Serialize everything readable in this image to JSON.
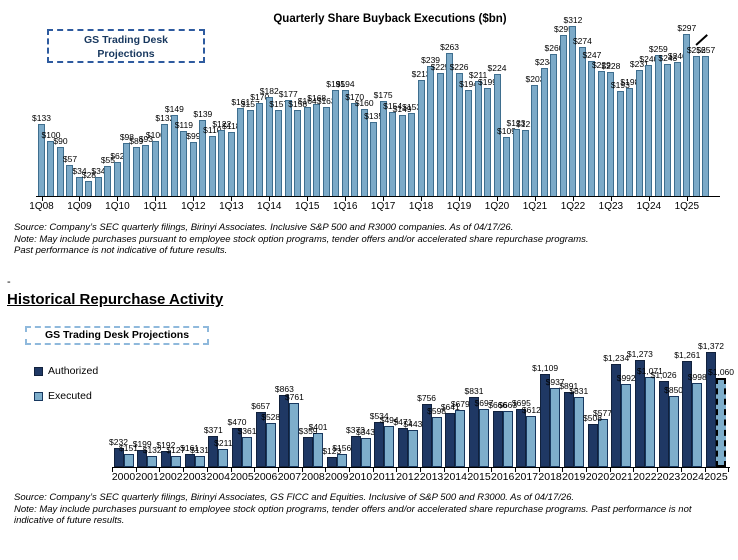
{
  "top_chart": {
    "projection_box_line1": "GS Trading Desk",
    "projection_box_line2": "Projections",
    "source_line1": "Source: Company’s SEC quarterly filings, Birinyi Associates. Inclusive S&P 500 and R3000 companies. As of 04/17/26.",
    "source_line2": "Note: May include purchases pursuant to employee stock option programs, tender offers and/or accelerated share repurchase programs.",
    "source_line3": "Past performance is not indicative of future results."
  },
  "spacer_dash": "-",
  "section_heading": "Historical Repurchase Activity",
  "bottom_chart": {
    "projection_box": "GS Trading Desk Projections",
    "source_line1": "Source: Company’s SEC quarterly filings, Birinyi Associates, GS FICC and Equities. Inclusive of S&P 500 and R3000. As of 04/17/26.",
    "source_line2": "Note: May include purchases pursuant to employee stock option programs, tender offers and/or accelerated share repurchase programs. Past performance is not indicative of future results."
  },
  "chart_data": [
    {
      "id": "quarterly_buyback_executions",
      "type": "bar",
      "title": "Quarterly Share Buyback Executions ($bn)",
      "unit": "$bn",
      "label_prefix": "$",
      "bar_color": "#7CAAC8",
      "bar_border": "#3E6E8E",
      "ylim": [
        0,
        330
      ],
      "ticks_every_n_bars": 4,
      "x_tick_labels": [
        "1Q08",
        "1Q09",
        "1Q10",
        "1Q11",
        "1Q12",
        "1Q13",
        "1Q14",
        "1Q15",
        "1Q16",
        "1Q17",
        "1Q18",
        "1Q19",
        "1Q20",
        "1Q21",
        "1Q22",
        "1Q23",
        "1Q24",
        "1Q25"
      ],
      "values": [
        133,
        100,
        90,
        57,
        34,
        28,
        34,
        55,
        62,
        98,
        89,
        93,
        100,
        132,
        149,
        119,
        99,
        139,
        110,
        122,
        118,
        161,
        157,
        170,
        182,
        157,
        177,
        158,
        164,
        168,
        163,
        195,
        194,
        170,
        160,
        135,
        175,
        154,
        149,
        153,
        213,
        239,
        225,
        263,
        226,
        194,
        211,
        199,
        224,
        109,
        123,
        121,
        203,
        234,
        260,
        295,
        312,
        274,
        247,
        229,
        228,
        193,
        198,
        231,
        240,
        259,
        243,
        246,
        297,
        256,
        257
      ]
    },
    {
      "id": "historical_repurchase_activity",
      "type": "grouped_bar",
      "title": "Historical Repurchase Activity",
      "unit": "$bn",
      "label_prefix": "$",
      "ylim": [
        0,
        1500
      ],
      "legend_position": "upper-left",
      "projection_category": "2025",
      "categories": [
        "2000",
        "2001",
        "2002",
        "2003",
        "2004",
        "2005",
        "2006",
        "2007",
        "2008",
        "2009",
        "2010",
        "2011",
        "2012",
        "2013",
        "2014",
        "2015",
        "2016",
        "2017",
        "2018",
        "2019",
        "2020",
        "2021",
        "2022",
        "2023",
        "2024",
        "2025"
      ],
      "series": [
        {
          "name": "Authorized",
          "color": "#1F3864",
          "border": "#11213C",
          "values": [
            232,
            199,
            192,
            161,
            371,
            470,
            657,
            863,
            359,
            123,
            373,
            534,
            471,
            756,
            641,
            831,
            666,
            695,
            1109,
            891,
            508,
            1234,
            1273,
            1026,
            1261,
            1372
          ]
        },
        {
          "name": "Executed",
          "color": "#7EAECB",
          "border": "#17375E",
          "values": [
            151,
            132,
            127,
            131,
            211,
            361,
            528,
            761,
            401,
            156,
            343,
            494,
            443,
            598,
            679,
            697,
            663,
            612,
            937,
            831,
            577,
            992,
            1071,
            850,
            998,
            1060
          ]
        }
      ]
    }
  ]
}
